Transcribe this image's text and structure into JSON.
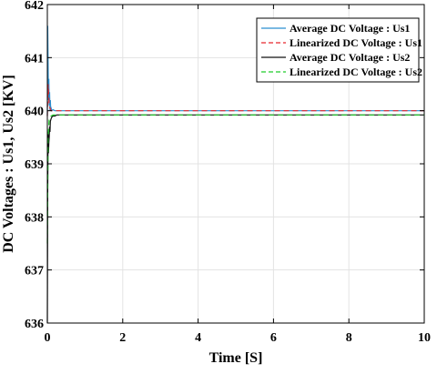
{
  "chart_data": {
    "type": "line",
    "title": "",
    "xlabel": "Time [S]",
    "ylabel": "DC Voltages : Us1, Us2 [KV]",
    "xlim": [
      0,
      10
    ],
    "ylim": [
      636,
      642
    ],
    "xticks": [
      "0",
      "2",
      "4",
      "6",
      "8",
      "10"
    ],
    "yticks": [
      "636",
      "637",
      "638",
      "639",
      "640",
      "641",
      "642"
    ],
    "grid": true,
    "legend_position": "top-right",
    "series": [
      {
        "name": "Average DC Voltage : Us1",
        "color": "#2a8fd0",
        "style": "solid",
        "x": [
          0,
          0.01,
          0.02,
          0.03,
          0.04,
          0.05,
          0.06,
          0.07,
          0.08,
          0.09,
          0.1,
          0.12,
          0.15,
          0.2,
          0.3,
          0.5,
          1,
          2,
          4,
          6,
          8,
          10
        ],
        "y": [
          639.9,
          641.6,
          640.9,
          640.2,
          640.6,
          640.1,
          640.35,
          640.0,
          640.2,
          640.02,
          640.05,
          640.0,
          640.02,
          640.0,
          640.0,
          640.0,
          640.0,
          640.0,
          640.0,
          640.0,
          640.0,
          640.0
        ]
      },
      {
        "name": "Linearized DC Voltage : Us1",
        "color": "#e8262c",
        "style": "dashed",
        "x": [
          0,
          0.02,
          0.05,
          0.08,
          0.1,
          0.15,
          0.2,
          0.5,
          1,
          2,
          4,
          6,
          8,
          10
        ],
        "y": [
          639.9,
          640.5,
          640.1,
          640.03,
          640.0,
          640.0,
          640.0,
          640.0,
          640.0,
          640.0,
          640.0,
          640.0,
          640.0,
          640.0
        ]
      },
      {
        "name": "Average DC Voltage : Us2",
        "color": "#111111",
        "style": "solid",
        "x": [
          0,
          0.01,
          0.02,
          0.03,
          0.04,
          0.05,
          0.06,
          0.07,
          0.08,
          0.1,
          0.12,
          0.15,
          0.2,
          0.25,
          0.3,
          0.5,
          1,
          2,
          4,
          6,
          8,
          10
        ],
        "y": [
          636.0,
          638.5,
          639.6,
          639.2,
          639.4,
          639.5,
          639.7,
          639.6,
          639.8,
          639.85,
          639.88,
          639.9,
          639.9,
          639.92,
          639.92,
          639.92,
          639.92,
          639.92,
          639.92,
          639.92,
          639.92,
          639.92
        ]
      },
      {
        "name": "Linearized DC Voltage : Us2",
        "color": "#1fcc2a",
        "style": "dashed",
        "x": [
          0,
          0.02,
          0.05,
          0.1,
          0.15,
          0.2,
          0.5,
          1,
          2,
          4,
          6,
          8,
          10
        ],
        "y": [
          637.5,
          639.5,
          639.85,
          639.9,
          639.92,
          639.92,
          639.92,
          639.92,
          639.92,
          639.92,
          639.92,
          639.92,
          639.92
        ]
      }
    ]
  }
}
